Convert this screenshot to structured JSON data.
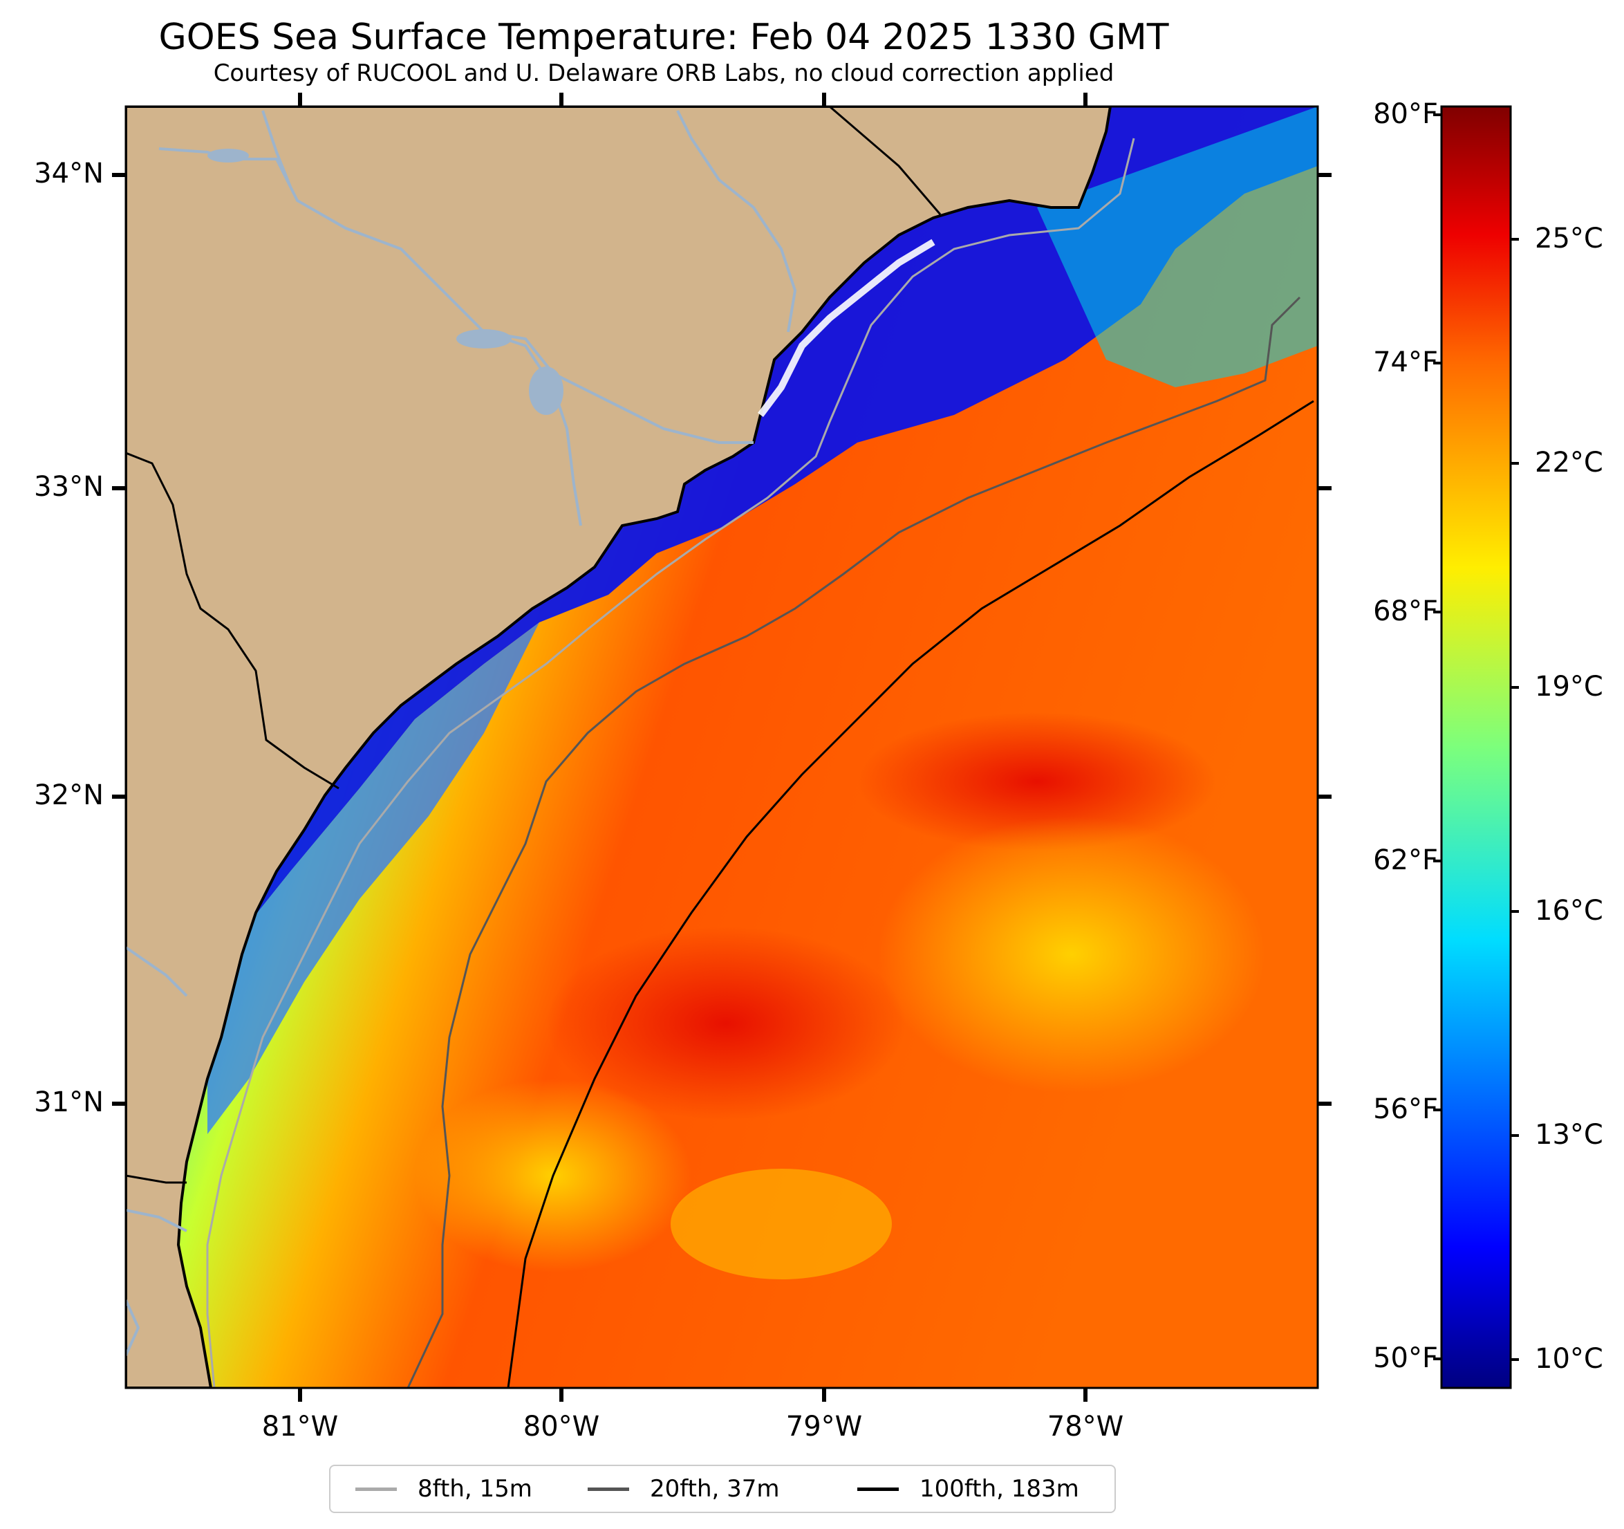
{
  "title": "GOES Sea Surface Temperature: Feb 04 2025 1330 GMT",
  "subtitle": "Courtesy of RUCOOL and U. Delaware ORB Labs, no cloud correction applied",
  "axes": {
    "lat_labels": [
      "34°N",
      "33°N",
      "32°N",
      "31°N"
    ],
    "lon_labels": [
      "81°W",
      "80°W",
      "79°W",
      "78°W"
    ]
  },
  "colorbar": {
    "fahrenheit_labels": [
      "80°F",
      "74°F",
      "68°F",
      "62°F",
      "56°F",
      "50°F"
    ],
    "celsius_labels": [
      "25°C",
      "22°C",
      "19°C",
      "16°C",
      "13°C",
      "10°C"
    ],
    "colormap": "jet",
    "min_f": 49.5,
    "max_f": 80.5
  },
  "legend": [
    {
      "label": "8fth, 15m",
      "color": "#aaaaaa"
    },
    {
      "label": "20fth, 37m",
      "color": "#555555"
    },
    {
      "label": "100fth, 183m",
      "color": "#000000"
    }
  ],
  "colors": {
    "land": "#d2b48c",
    "river": "#9db4cc",
    "coast": "#000000",
    "background": "#ffffff"
  }
}
